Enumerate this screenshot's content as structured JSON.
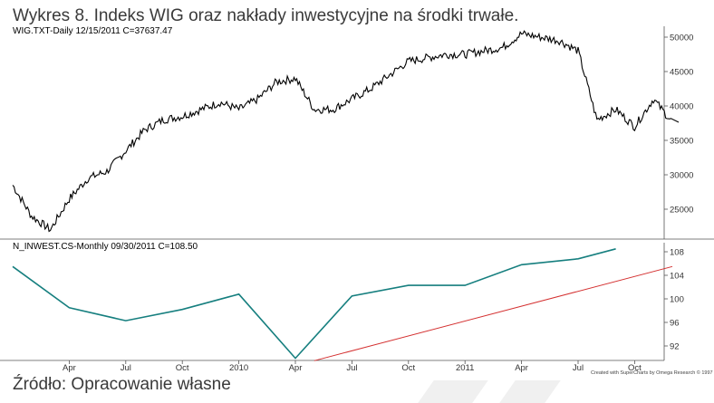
{
  "title": "Wykres 8. Indeks WIG oraz nakłady inwestycyjne na środki trwałe.",
  "source": "Źródło: Opracowanie własne",
  "credit": "Created with SuperCharts by Omega Research © 1997",
  "chart_data": [
    {
      "type": "line",
      "label": "WIG.TXT-Daily   12/15/2011   C=37637.47",
      "x_tick_labels": [
        "Apr",
        "Jul",
        "Oct",
        "2010",
        "Apr",
        "Jul",
        "Oct",
        "2011",
        "Apr",
        "Jul",
        "Oct"
      ],
      "y_ticks": [
        25000,
        30000,
        35000,
        40000,
        45000,
        50000
      ],
      "ylim": [
        21000,
        51000
      ],
      "series": [
        {
          "x": [
            "2009-01",
            "2009-02",
            "2009-03",
            "2009-04",
            "2009-05",
            "2009-06",
            "2009-07",
            "2009-08",
            "2009-09",
            "2009-10",
            "2009-11",
            "2009-12",
            "2010-01",
            "2010-02",
            "2010-03",
            "2010-04",
            "2010-05",
            "2010-06",
            "2010-07",
            "2010-08",
            "2010-09",
            "2010-10",
            "2010-11",
            "2010-12",
            "2011-01",
            "2011-02",
            "2011-03",
            "2011-04",
            "2011-05",
            "2011-06",
            "2011-07",
            "2011-08",
            "2011-09",
            "2011-10",
            "2011-11",
            "2011-12"
          ],
          "values": [
            28500,
            24000,
            22000,
            26500,
            29500,
            30500,
            33500,
            36500,
            38000,
            38500,
            39500,
            40500,
            39500,
            41000,
            43500,
            44000,
            39500,
            39500,
            41000,
            42500,
            44500,
            46500,
            47000,
            47500,
            47500,
            48000,
            48500,
            50500,
            50000,
            49500,
            48000,
            38000,
            39500,
            37000,
            41000,
            37637
          ]
        }
      ]
    },
    {
      "type": "line",
      "label": "N_INWEST.CS-Monthly   09/30/2011   C=108.50",
      "x_tick_labels": [
        "Apr",
        "Jul",
        "Oct",
        "2010",
        "Apr",
        "Jul",
        "Oct",
        "2011",
        "Apr",
        "Jul",
        "Oct"
      ],
      "y_ticks": [
        92,
        96,
        100,
        104,
        108
      ],
      "ylim": [
        89,
        110
      ],
      "series": [
        {
          "x": [
            "2009-01",
            "2009-04",
            "2009-07",
            "2009-10",
            "2010-01",
            "2010-04",
            "2010-07",
            "2010-10",
            "2011-01",
            "2011-04",
            "2011-07",
            "2011-09"
          ],
          "values": [
            105.5,
            98.5,
            96.3,
            98.2,
            100.8,
            89.9,
            100.5,
            102.3,
            102.3,
            105.8,
            106.8,
            108.5
          ],
          "color": "#167f7f"
        },
        {
          "x": [
            "2010-05",
            "2011-12"
          ],
          "values": [
            89.5,
            105.5
          ],
          "color": "#d43030"
        }
      ]
    }
  ]
}
